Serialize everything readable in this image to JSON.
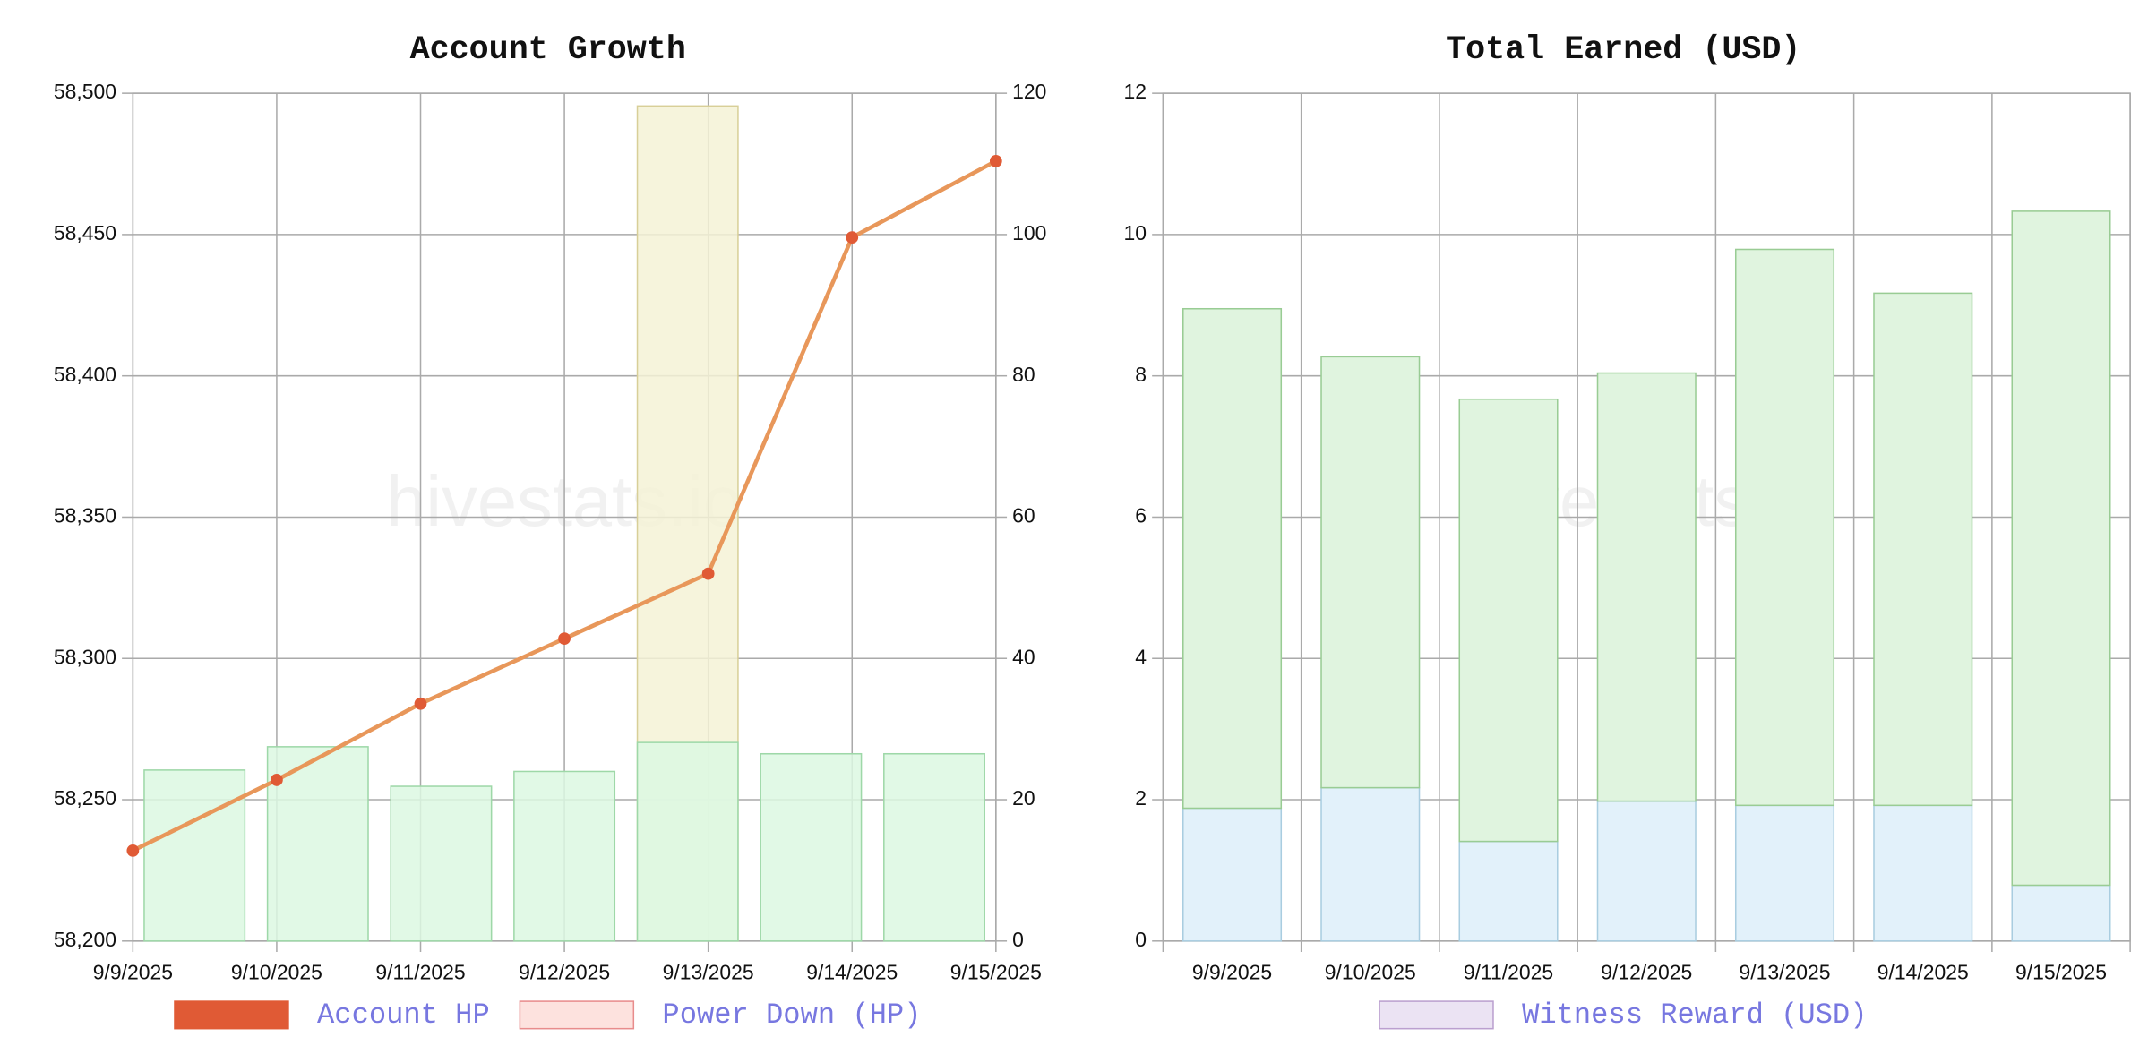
{
  "chart_data": [
    {
      "type": "combo",
      "title": "Account Growth",
      "watermark": "hivestats.io",
      "categories": [
        "9/9/2025",
        "9/10/2025",
        "9/11/2025",
        "9/12/2025",
        "9/13/2025",
        "9/14/2025",
        "9/15/2025"
      ],
      "series": [
        {
          "name": "Account HP",
          "type": "line",
          "color": "#e05a35",
          "line_color": "#e8975a",
          "values": [
            58232,
            58257,
            58284,
            58307,
            58330,
            58449,
            58476
          ]
        },
        {
          "name": "Power Down (HP)",
          "type": "bar",
          "axis": "y2",
          "color": "#fde2de",
          "stroke": "#e88c8c",
          "values": [
            null,
            null,
            null,
            null,
            null,
            null,
            null
          ]
        },
        {
          "type": "bar",
          "axis": "y2",
          "color": "#f5f2d6",
          "stroke": "#d8cf98",
          "values": [
            null,
            null,
            null,
            null,
            118.2,
            null,
            null
          ]
        },
        {
          "type": "bar",
          "axis": "y2",
          "color": "#dcf8e2",
          "stroke": "#9ed8a8",
          "values": [
            24.2,
            27.5,
            21.9,
            24,
            28.1,
            26.5,
            26.5
          ]
        }
      ],
      "ylim": [
        58200,
        58500
      ],
      "yticks": [
        {
          "value": 58200,
          "label": "58,200"
        },
        {
          "value": 58250,
          "label": "58,250"
        },
        {
          "value": 58300,
          "label": "58,300"
        },
        {
          "value": 58350,
          "label": "58,350"
        },
        {
          "value": 58400,
          "label": "58,400"
        },
        {
          "value": 58450,
          "label": "58,450"
        },
        {
          "value": 58500,
          "label": "58,500"
        }
      ],
      "y2lim": [
        0,
        120
      ],
      "y2ticks": [
        0,
        20,
        40,
        60,
        80,
        100,
        120
      ],
      "grid": true
    },
    {
      "type": "stacked_bar",
      "title": "Total Earned (USD)",
      "watermark": "hivestats.io",
      "categories": [
        "9/9/2025",
        "9/10/2025",
        "9/11/2025",
        "9/12/2025",
        "9/13/2025",
        "9/14/2025",
        "9/15/2025"
      ],
      "series": [
        {
          "color": "#e2f1fa",
          "stroke": "#a9cde0",
          "values": [
            1.88,
            2.17,
            1.41,
            1.98,
            1.92,
            1.92,
            0.79
          ]
        },
        {
          "color": "#e0f4df",
          "stroke": "#99cc94",
          "values": [
            7.07,
            6.1,
            6.26,
            6.06,
            7.87,
            7.25,
            9.54
          ]
        },
        {
          "name": "Witness Reward (USD)",
          "color": "#ebe3f3",
          "stroke": "#bba0cf",
          "values": [
            null,
            null,
            null,
            null,
            null,
            null,
            null
          ]
        }
      ],
      "ylim": [
        0,
        12
      ],
      "yticks": [
        0,
        2,
        4,
        6,
        8,
        10,
        12
      ],
      "grid": true
    }
  ]
}
